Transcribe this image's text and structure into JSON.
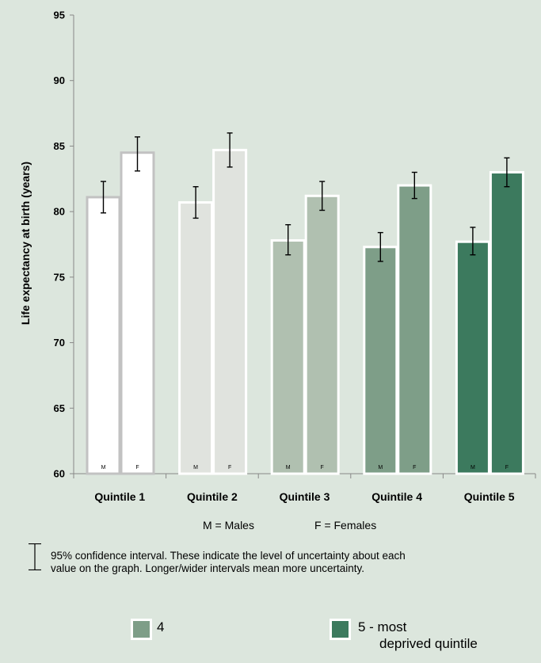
{
  "chart_data": {
    "type": "bar",
    "ylabel": "Life expectancy at birth (years)",
    "ylim": [
      60,
      95
    ],
    "yticks": [
      "60",
      "65",
      "70",
      "75",
      "80",
      "85",
      "90",
      "95"
    ],
    "categories": [
      "Quintile 1",
      "Quintile 2",
      "Quintile 3",
      "Quintile 4",
      "Quintile 5"
    ],
    "bar_labels": [
      "M",
      "F"
    ],
    "groups": [
      {
        "male": 81.1,
        "male_ci": [
          79.9,
          82.3
        ],
        "female": 84.5,
        "female_ci": [
          83.1,
          85.7
        ],
        "fill": "#ffffff",
        "stroke": "#c2c2c2"
      },
      {
        "male": 80.7,
        "male_ci": [
          79.5,
          81.9
        ],
        "female": 84.7,
        "female_ci": [
          83.4,
          86.0
        ],
        "fill": "#e0e3de",
        "stroke": "#ffffff"
      },
      {
        "male": 77.8,
        "male_ci": [
          76.7,
          79.0
        ],
        "female": 81.2,
        "female_ci": [
          80.1,
          82.3
        ],
        "fill": "#b0c0b0",
        "stroke": "#ffffff"
      },
      {
        "male": 77.3,
        "male_ci": [
          76.2,
          78.4
        ],
        "female": 82.0,
        "female_ci": [
          81.0,
          83.0
        ],
        "fill": "#7e9e88",
        "stroke": "#ffffff"
      },
      {
        "male": 77.7,
        "male_ci": [
          76.7,
          78.8
        ],
        "female": 83.0,
        "female_ci": [
          81.9,
          84.1
        ],
        "fill": "#3c7a5e",
        "stroke": "#ffffff"
      }
    ],
    "grid": false
  },
  "notes": {
    "males": "M = Males",
    "females": "F = Females"
  },
  "ci_note": {
    "line1": "95% confidence interval. These indicate the level of uncertainty about each",
    "line2": "value on the graph. Longer/wider intervals mean more uncertainty."
  },
  "legend": [
    {
      "label": "4",
      "color": "#7e9e88"
    },
    {
      "label_line1": "5 - most",
      "label_line2": "deprived quintile",
      "color": "#3c7a5e"
    }
  ]
}
